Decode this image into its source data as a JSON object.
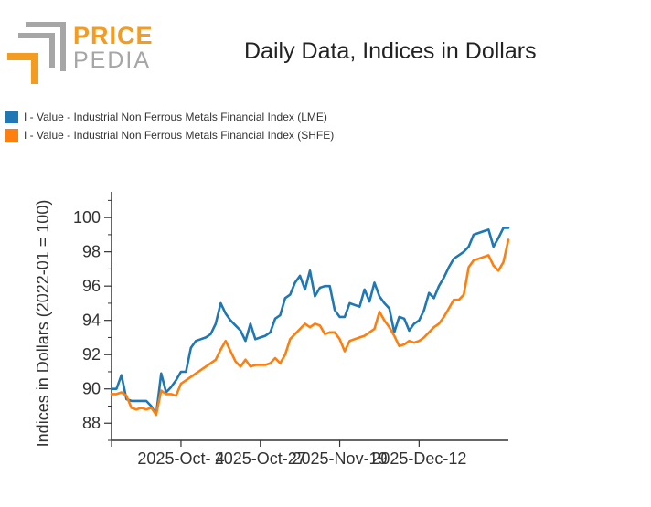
{
  "logo": {
    "word1": "PRICE",
    "word2": "PEDIA",
    "accent": "#f39c1f",
    "grey": "#a6a6a6"
  },
  "chart_data": {
    "type": "line",
    "title": "Daily Data, Indices in Dollars",
    "xlabel": "",
    "ylabel": "Indices in Dollars (2022-01 = 100)",
    "ylim": [
      87,
      101.5
    ],
    "yticks": [
      88,
      90,
      92,
      94,
      96,
      98,
      100
    ],
    "xtick_labels": [
      "2025-Oct- 4",
      "2025-Oct-27",
      "2025-Nov-19",
      "2025-Dec-12"
    ],
    "xtick_index": [
      14,
      30,
      46,
      62
    ],
    "grid": false,
    "legend_position": "top-left",
    "series": [
      {
        "name": "I - Value - Industrial Non Ferrous Metals Financial Index (LME)",
        "color": "#1f77b4",
        "values": [
          90.0,
          90.0,
          90.8,
          89.4,
          89.3,
          89.3,
          89.3,
          89.3,
          89.0,
          88.5,
          90.9,
          89.8,
          90.1,
          90.5,
          91.0,
          91.0,
          92.4,
          92.8,
          92.9,
          93.0,
          93.2,
          93.8,
          95.0,
          94.4,
          94.0,
          93.7,
          93.4,
          92.8,
          93.8,
          92.9,
          93.0,
          93.1,
          93.3,
          94.1,
          94.3,
          95.3,
          95.5,
          96.2,
          96.6,
          95.8,
          96.9,
          95.4,
          95.9,
          96.0,
          96.0,
          94.6,
          94.2,
          94.2,
          95.0,
          94.9,
          94.8,
          95.8,
          95.1,
          96.2,
          95.4,
          95.0,
          94.7,
          93.3,
          94.2,
          94.1,
          93.4,
          93.8,
          94.0,
          94.6,
          95.6,
          95.3,
          96.0,
          96.5,
          97.1,
          97.6,
          97.8,
          98.0,
          98.3,
          99.0,
          99.1,
          99.2,
          99.3,
          98.3,
          98.8,
          99.4,
          99.4
        ]
      },
      {
        "name": "I - Value - Industrial Non Ferrous Metals Financial Index (SHFE)",
        "color": "#ff7f0e",
        "values": [
          89.7,
          89.7,
          89.8,
          89.6,
          88.9,
          88.8,
          88.9,
          88.8,
          88.9,
          88.5,
          89.9,
          89.7,
          89.7,
          89.6,
          90.3,
          90.5,
          90.7,
          90.9,
          91.1,
          91.3,
          91.5,
          91.7,
          92.3,
          92.8,
          92.2,
          91.6,
          91.3,
          91.7,
          91.3,
          91.4,
          91.4,
          91.4,
          91.5,
          91.8,
          91.5,
          92.0,
          92.9,
          93.2,
          93.5,
          93.8,
          93.6,
          93.8,
          93.7,
          93.2,
          93.3,
          93.3,
          92.9,
          92.2,
          92.8,
          92.9,
          93.0,
          93.1,
          93.3,
          93.5,
          94.5,
          94.0,
          93.6,
          93.1,
          92.5,
          92.6,
          92.8,
          92.7,
          92.8,
          93.0,
          93.3,
          93.6,
          93.8,
          94.2,
          94.7,
          95.2,
          95.2,
          95.5,
          97.1,
          97.5,
          97.6,
          97.7,
          97.8,
          97.2,
          96.9,
          97.4,
          98.7
        ]
      }
    ]
  }
}
